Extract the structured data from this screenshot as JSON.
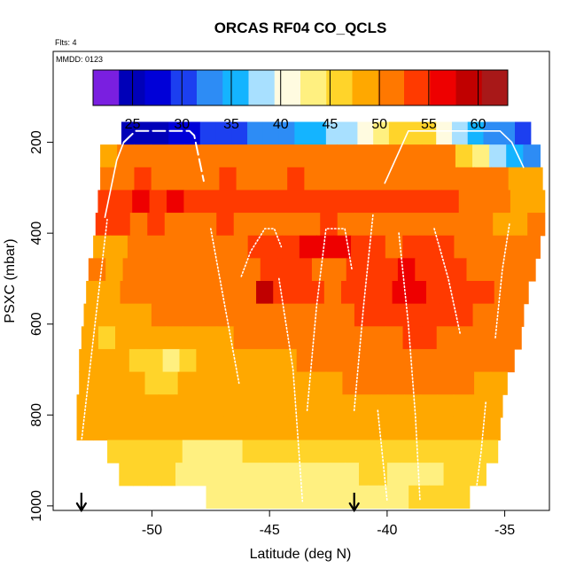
{
  "chart_data": {
    "type": "heatmap",
    "title": "ORCAS RF04 CO_QCLS",
    "annotations": [
      "Flts: 4",
      "MMDD: 0123"
    ],
    "xlabel": "Latitude (deg N)",
    "ylabel": "PSXC (mbar)",
    "xlim": [
      -54.2,
      -33.1
    ],
    "ylim": [
      1010,
      0
    ],
    "x_ticks": [
      -50,
      -45,
      -40,
      -35
    ],
    "x_tick_labels": [
      "-50",
      "-45",
      "-40",
      "-35"
    ],
    "y_ticks": [
      200,
      400,
      600,
      800,
      1000
    ],
    "y_tick_labels": [
      "200",
      "400",
      "600",
      "800",
      "1000"
    ],
    "colorbar": {
      "min": 21,
      "max": 63,
      "ticks": [
        25,
        30,
        35,
        40,
        45,
        50,
        55,
        60
      ],
      "tick_labels": [
        "25",
        "30",
        "35",
        "40",
        "45",
        "50",
        "55",
        "60"
      ],
      "colors": [
        "#7a1fe0",
        "#0000b8",
        "#0000d8",
        "#1c3ff0",
        "#2d8cf5",
        "#14b4ff",
        "#a8e0ff",
        "#fffbe0",
        "#fff080",
        "#ffd42a",
        "#ffa800",
        "#ff7800",
        "#ff3a00",
        "#ee0000",
        "#c00000",
        "#a81818"
      ]
    },
    "layers": [
      {
        "p": 180,
        "x_start": -51.3,
        "x_end": -33.9,
        "values": [
          25,
          24,
          26,
          27,
          28,
          29,
          30,
          31,
          32,
          33,
          34,
          35,
          36,
          37,
          38,
          40,
          42,
          45,
          47,
          45,
          40,
          37,
          35,
          34,
          32,
          30
        ]
      },
      {
        "p": 230,
        "x_start": -52.2,
        "x_end": -33.5,
        "values": [
          49,
          50,
          50,
          50,
          51,
          52,
          51,
          52,
          52,
          52,
          52,
          52,
          52,
          52,
          52,
          52,
          52,
          52,
          52,
          52,
          51,
          47,
          42,
          38,
          35,
          33
        ]
      },
      {
        "p": 280,
        "x_start": -52.2,
        "x_end": -33.4,
        "values": [
          51,
          52,
          53,
          52,
          52,
          51,
          52,
          53,
          52,
          52,
          52,
          53,
          52,
          52,
          52,
          52,
          52,
          52,
          52,
          51,
          51,
          51,
          51,
          50,
          49,
          48
        ]
      },
      {
        "p": 330,
        "x_start": -52.3,
        "x_end": -33.3,
        "values": [
          55,
          55,
          56,
          55,
          56,
          55,
          55,
          54,
          55,
          54,
          54,
          54,
          55,
          54,
          54,
          54,
          54,
          54,
          54,
          53,
          53,
          51,
          50,
          50,
          48,
          48
        ]
      },
      {
        "p": 380,
        "x_start": -52.4,
        "x_end": -33.3,
        "values": [
          53,
          53,
          52,
          53,
          52,
          52,
          52,
          53,
          52,
          52,
          52,
          52,
          52,
          53,
          52,
          52,
          52,
          52,
          52,
          52,
          52,
          51,
          50,
          49,
          48,
          50
        ]
      },
      {
        "p": 430,
        "x_start": -52.5,
        "x_end": -33.5,
        "values": [
          49,
          48,
          50,
          51,
          51,
          52,
          51,
          52,
          52,
          53,
          54,
          55,
          56,
          57,
          56,
          54,
          53,
          52,
          54,
          55,
          53,
          52,
          51,
          50,
          50,
          51
        ]
      },
      {
        "p": 480,
        "x_start": -52.7,
        "x_end": -33.7,
        "values": [
          50,
          49,
          50,
          50,
          51,
          51,
          52,
          52,
          52,
          52,
          53,
          54,
          53,
          52,
          52,
          53,
          54,
          55,
          56,
          55,
          54,
          53,
          52,
          52,
          51,
          50
        ]
      },
      {
        "p": 530,
        "x_start": -52.8,
        "x_end": -34.0,
        "values": [
          49,
          49,
          50,
          50,
          51,
          51,
          50,
          51,
          52,
          52,
          58,
          55,
          54,
          53,
          52,
          53,
          54,
          55,
          56,
          56,
          55,
          55,
          54,
          53,
          52,
          51
        ]
      },
      {
        "p": 580,
        "x_start": -52.9,
        "x_end": -34.2,
        "values": [
          48,
          48,
          49,
          49,
          50,
          50,
          50,
          50,
          51,
          51,
          52,
          52,
          51,
          51,
          52,
          52,
          53,
          54,
          55,
          55,
          54,
          54,
          53,
          52,
          52,
          51
        ]
      },
      {
        "p": 630,
        "x_start": -53.0,
        "x_end": -34.3,
        "values": [
          48,
          47,
          48,
          49,
          49,
          49,
          48,
          48,
          49,
          50,
          50,
          50,
          50,
          50,
          50,
          51,
          51,
          52,
          52,
          53,
          53,
          52,
          52,
          51,
          51,
          51
        ]
      },
      {
        "p": 680,
        "x_start": -53.1,
        "x_end": -34.6,
        "values": [
          48,
          48,
          49,
          47,
          45,
          44,
          46,
          48,
          48,
          49,
          49,
          49,
          49,
          50,
          50,
          50,
          50,
          51,
          51,
          51,
          51,
          51,
          51,
          50,
          50,
          50
        ]
      },
      {
        "p": 730,
        "x_start": -53.1,
        "x_end": -34.9,
        "values": [
          49,
          49,
          49,
          48,
          47,
          47,
          48,
          48,
          48,
          48,
          48,
          49,
          49,
          49,
          49,
          49,
          50,
          50,
          50,
          50,
          50,
          50,
          50,
          50,
          49,
          49
        ]
      },
      {
        "p": 780,
        "x_start": -53.2,
        "x_end": -35.1,
        "values": [
          48,
          48,
          48,
          48,
          48,
          48,
          48,
          48,
          48,
          48,
          48,
          48,
          49,
          49,
          49,
          49,
          49,
          49,
          49,
          49,
          49,
          49,
          49,
          49,
          49,
          48
        ]
      },
      {
        "p": 830,
        "x_start": -53.2,
        "x_end": -35.2,
        "values": [
          48,
          48,
          48,
          48,
          48,
          48,
          48,
          49,
          49,
          49,
          49,
          49,
          49,
          49,
          49,
          49,
          49,
          49,
          49,
          49,
          49,
          49,
          48,
          48,
          48,
          48
        ]
      },
      {
        "p": 880,
        "x_start": -51.9,
        "x_end": -35.3,
        "values": [
          46,
          46,
          46,
          46,
          45,
          44,
          43,
          43,
          44,
          45,
          45,
          46,
          46,
          46,
          46,
          46,
          46,
          46,
          46,
          46,
          45,
          45,
          45,
          46,
          46,
          46
        ]
      },
      {
        "p": 930,
        "x_start": -51.4,
        "x_end": -35.8,
        "values": [
          46,
          45,
          45,
          45,
          44,
          43,
          43,
          43,
          43,
          43,
          44,
          44,
          44,
          44,
          44,
          44,
          44,
          45,
          45,
          44,
          44,
          44,
          44,
          45,
          45,
          45
        ]
      },
      {
        "p": 980,
        "x_start": -47.7,
        "x_end": -36.5,
        "values": [
          44,
          44,
          44,
          44,
          44,
          44,
          44,
          44,
          44,
          44,
          44,
          44,
          44,
          44,
          44,
          44,
          44,
          44,
          44,
          44,
          45,
          45,
          45,
          45,
          45,
          46
        ]
      }
    ],
    "flight_tracks": [
      {
        "style": "dashed",
        "points": [
          [
            -51.2,
            200
          ],
          [
            -50.7,
            175
          ],
          [
            -48.4,
            175
          ],
          [
            -48.2,
            185
          ],
          [
            -47.8,
            285
          ]
        ]
      },
      {
        "style": "solid",
        "points": [
          [
            -52.0,
            365
          ],
          [
            -51.5,
            240
          ],
          [
            -51.2,
            200
          ]
        ]
      },
      {
        "style": "solid",
        "points": [
          [
            -40.1,
            290
          ],
          [
            -39.1,
            175
          ],
          [
            -37.5,
            175
          ],
          [
            -35.2,
            175
          ],
          [
            -34.7,
            200
          ],
          [
            -34.2,
            255
          ]
        ]
      },
      {
        "style": "dotted",
        "points": [
          [
            -53.0,
            860
          ],
          [
            -52.4,
            590
          ],
          [
            -51.9,
            370
          ]
        ]
      },
      {
        "style": "dotted",
        "points": [
          [
            -47.5,
            390
          ],
          [
            -46.9,
            560
          ],
          [
            -46.3,
            730
          ]
        ]
      },
      {
        "style": "dotted",
        "points": [
          [
            -46.2,
            495
          ],
          [
            -45.8,
            440
          ],
          [
            -45.2,
            390
          ],
          [
            -44.8,
            390
          ],
          [
            -44.5,
            430
          ]
        ]
      },
      {
        "style": "dotted",
        "points": [
          [
            -44.6,
            500
          ],
          [
            -44.0,
            700
          ],
          [
            -43.6,
            990
          ]
        ]
      },
      {
        "style": "dotted",
        "points": [
          [
            -43.4,
            790
          ],
          [
            -43.0,
            560
          ],
          [
            -42.6,
            390
          ],
          [
            -41.8,
            390
          ],
          [
            -41.5,
            480
          ]
        ]
      },
      {
        "style": "dotted",
        "points": [
          [
            -41.4,
            790
          ],
          [
            -41.0,
            560
          ],
          [
            -40.6,
            360
          ]
        ]
      },
      {
        "style": "dotted",
        "points": [
          [
            -40.4,
            790
          ],
          [
            -40.0,
            990
          ]
        ]
      },
      {
        "style": "dotted",
        "points": [
          [
            -39.5,
            400
          ],
          [
            -39.1,
            600
          ],
          [
            -38.8,
            800
          ],
          [
            -38.6,
            990
          ]
        ]
      },
      {
        "style": "dotted",
        "points": [
          [
            -38.0,
            390
          ],
          [
            -37.4,
            500
          ],
          [
            -36.9,
            620
          ]
        ]
      },
      {
        "style": "dotted",
        "points": [
          [
            -36.3,
            1000
          ],
          [
            -36.0,
            880
          ],
          [
            -35.8,
            770
          ]
        ]
      },
      {
        "style": "dotted",
        "points": [
          [
            -35.4,
            630
          ],
          [
            -35.1,
            480
          ],
          [
            -34.8,
            380
          ]
        ]
      }
    ],
    "markers": [
      {
        "type": "arrow-down",
        "x": -53.0
      },
      {
        "type": "arrow-down",
        "x": -41.4
      }
    ],
    "grid": false
  }
}
